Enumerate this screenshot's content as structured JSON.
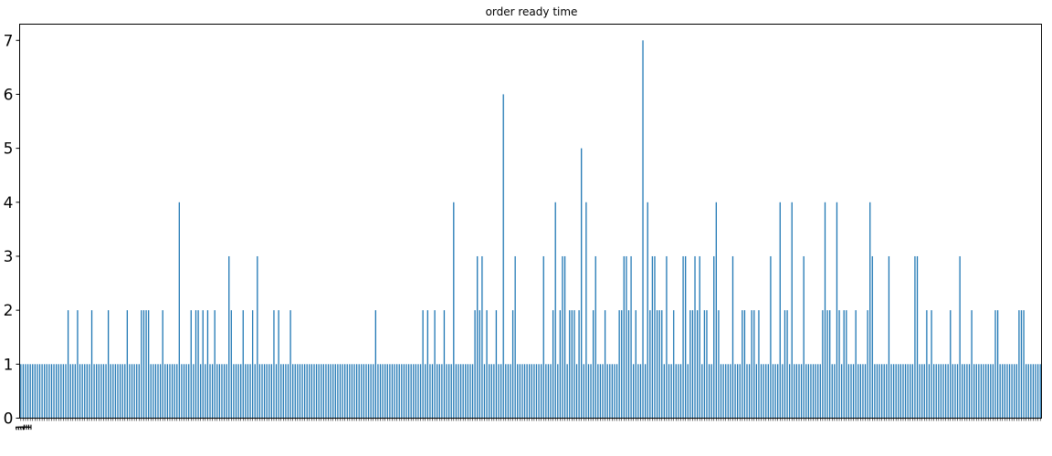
{
  "chart_data": {
    "type": "bar",
    "title": "order ready time",
    "xlabel": "",
    "ylabel": "",
    "ylim": [
      0,
      7.3
    ],
    "yticks": [
      0,
      1,
      2,
      3,
      4,
      5,
      6,
      7
    ],
    "bar_color": "#1f77b4",
    "grid": false,
    "legend": "none",
    "values": [
      1,
      1,
      1,
      1,
      1,
      1,
      1,
      1,
      1,
      1,
      1,
      1,
      1,
      1,
      1,
      1,
      1,
      1,
      1,
      1,
      2,
      1,
      1,
      1,
      2,
      1,
      1,
      1,
      1,
      1,
      2,
      1,
      1,
      1,
      1,
      1,
      1,
      2,
      1,
      1,
      1,
      1,
      1,
      1,
      1,
      2,
      1,
      1,
      1,
      1,
      1,
      2,
      2,
      2,
      2,
      1,
      1,
      1,
      1,
      1,
      2,
      1,
      1,
      1,
      1,
      1,
      1,
      4,
      1,
      1,
      1,
      1,
      2,
      1,
      2,
      2,
      1,
      2,
      1,
      2,
      1,
      1,
      2,
      1,
      1,
      1,
      1,
      1,
      3,
      2,
      1,
      1,
      1,
      1,
      2,
      1,
      1,
      1,
      2,
      1,
      3,
      1,
      1,
      1,
      1,
      1,
      1,
      2,
      1,
      2,
      1,
      1,
      1,
      1,
      2,
      1,
      1,
      1,
      1,
      1,
      1,
      1,
      1,
      1,
      1,
      1,
      1,
      1,
      1,
      1,
      1,
      1,
      1,
      1,
      1,
      1,
      1,
      1,
      1,
      1,
      1,
      1,
      1,
      1,
      1,
      1,
      1,
      1,
      1,
      1,
      2,
      1,
      1,
      1,
      1,
      1,
      1,
      1,
      1,
      1,
      1,
      1,
      1,
      1,
      1,
      1,
      1,
      1,
      1,
      1,
      2,
      1,
      2,
      1,
      1,
      2,
      1,
      1,
      1,
      2,
      1,
      1,
      1,
      4,
      1,
      1,
      1,
      1,
      1,
      1,
      1,
      1,
      2,
      3,
      2,
      3,
      1,
      2,
      1,
      1,
      1,
      2,
      1,
      1,
      6,
      1,
      1,
      1,
      2,
      3,
      1,
      1,
      1,
      1,
      1,
      1,
      1,
      1,
      1,
      1,
      1,
      3,
      1,
      1,
      1,
      2,
      4,
      1,
      2,
      3,
      3,
      1,
      2,
      2,
      2,
      1,
      2,
      5,
      1,
      4,
      1,
      1,
      2,
      3,
      1,
      1,
      1,
      2,
      1,
      1,
      1,
      1,
      1,
      2,
      2,
      3,
      3,
      2,
      3,
      1,
      2,
      1,
      1,
      7,
      1,
      4,
      2,
      3,
      3,
      2,
      2,
      2,
      1,
      3,
      1,
      1,
      2,
      1,
      1,
      1,
      3,
      3,
      1,
      2,
      2,
      3,
      2,
      3,
      1,
      2,
      2,
      1,
      1,
      3,
      4,
      2,
      1,
      1,
      1,
      1,
      1,
      3,
      1,
      1,
      1,
      2,
      2,
      1,
      1,
      2,
      2,
      1,
      2,
      1,
      1,
      1,
      1,
      3,
      1,
      1,
      1,
      4,
      1,
      2,
      2,
      1,
      4,
      1,
      1,
      1,
      1,
      3,
      1,
      1,
      1,
      1,
      1,
      1,
      1,
      2,
      4,
      2,
      2,
      1,
      1,
      4,
      2,
      1,
      2,
      2,
      1,
      1,
      1,
      2,
      1,
      1,
      1,
      1,
      2,
      4,
      3,
      1,
      1,
      1,
      1,
      1,
      1,
      3,
      1,
      1,
      1,
      1,
      1,
      1,
      1,
      1,
      1,
      1,
      3,
      3,
      1,
      1,
      1,
      2,
      1,
      2,
      1,
      1,
      1,
      1,
      1,
      1,
      1,
      2,
      1,
      1,
      1,
      3,
      1,
      1,
      1,
      1,
      2,
      1,
      1,
      1,
      1,
      1,
      1,
      1,
      1,
      1,
      2,
      2,
      1,
      1,
      1,
      1,
      1,
      1,
      1,
      1,
      2,
      2,
      2,
      1,
      1,
      1,
      1,
      1,
      1,
      1
    ],
    "x_labels_visible": [
      "1",
      "1",
      "1",
      "1"
    ]
  }
}
